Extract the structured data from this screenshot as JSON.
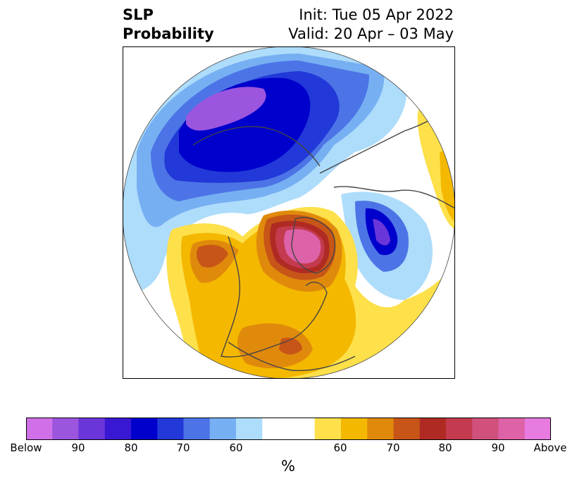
{
  "title": {
    "left_line1": "SLP",
    "left_line2": "Probability",
    "right_line1": "Init: Tue 05 Apr 2022",
    "right_line2": "Valid: 20 Apr – 03 May"
  },
  "colors": {
    "below": [
      "#d070e8",
      "#9b55de",
      "#6a35d9",
      "#3a18d3",
      "#0000cc",
      "#2238d8",
      "#4c74e6",
      "#76b0f2",
      "#aedcfb"
    ],
    "neutral": "#ffffff",
    "above": [
      "#fde04a",
      "#f4b800",
      "#e08a0c",
      "#c75518",
      "#b02a24",
      "#c43a4e",
      "#d0517c",
      "#dd62a8",
      "#e77be0"
    ],
    "coast": "#444444"
  },
  "colorbar": {
    "labels": [
      "Below",
      "90",
      "80",
      "70",
      "60",
      "60",
      "70",
      "80",
      "90",
      "Above"
    ],
    "unit": "%"
  }
}
